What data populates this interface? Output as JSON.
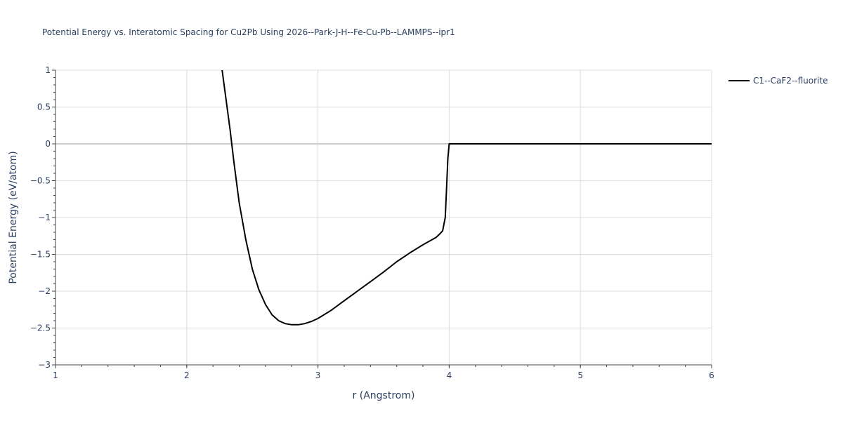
{
  "chart_data": {
    "type": "line",
    "title": "Potential Energy vs. Interatomic Spacing for Cu2Pb Using 2026--Park-J-H--Fe-Cu-Pb--LAMMPS--ipr1",
    "xlabel": "r (Angstrom)",
    "ylabel": "Potential Energy (eV/atom)",
    "xlim": [
      1,
      6
    ],
    "ylim": [
      -3,
      1
    ],
    "xticks": [
      1,
      2,
      3,
      4,
      5,
      6
    ],
    "yticks": [
      -3,
      -2.5,
      -2,
      -1.5,
      -1,
      -0.5,
      0,
      0.5,
      1
    ],
    "xtick_labels": [
      "1",
      "2",
      "3",
      "4",
      "5",
      "6"
    ],
    "ytick_labels": [
      "−3",
      "−2.5",
      "−2",
      "−1.5",
      "−1",
      "−0.5",
      "0",
      "0.5",
      "1"
    ],
    "grid": true,
    "legend_position": "top-right",
    "series": [
      {
        "name": "C1--CaF2--fluorite",
        "color": "#000000",
        "x": [
          2.27,
          2.3,
          2.33,
          2.36,
          2.4,
          2.45,
          2.5,
          2.55,
          2.6,
          2.65,
          2.7,
          2.75,
          2.8,
          2.85,
          2.9,
          2.95,
          3.0,
          3.1,
          3.2,
          3.3,
          3.4,
          3.5,
          3.55,
          3.6,
          3.7,
          3.8,
          3.9,
          3.93,
          3.95,
          3.97,
          3.98,
          3.99,
          4.0,
          4.2,
          4.5,
          5.0,
          5.5,
          6.0
        ],
        "y": [
          1.0,
          0.6,
          0.2,
          -0.25,
          -0.8,
          -1.3,
          -1.7,
          -1.98,
          -2.18,
          -2.32,
          -2.4,
          -2.44,
          -2.455,
          -2.455,
          -2.44,
          -2.41,
          -2.37,
          -2.26,
          -2.13,
          -2.0,
          -1.87,
          -1.74,
          -1.67,
          -1.6,
          -1.48,
          -1.37,
          -1.27,
          -1.22,
          -1.18,
          -1.0,
          -0.6,
          -0.2,
          0.0,
          0.0,
          0.0,
          0.0,
          0.0,
          0.0
        ]
      }
    ]
  }
}
